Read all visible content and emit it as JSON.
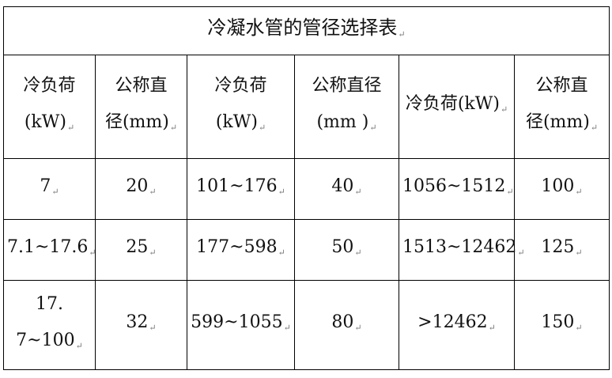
{
  "table": {
    "title": "冷凝水管的管径选择表",
    "headers": [
      {
        "line1": "冷负荷",
        "line2": "(kW)"
      },
      {
        "line1": "公称直",
        "line2": "径(mm)"
      },
      {
        "line1": "冷负荷",
        "line2": "(kW)"
      },
      {
        "line1": "公称直径",
        "line2": "(mm )"
      },
      {
        "line1": "冷负荷(kW)",
        "line2": ""
      },
      {
        "line1": "公称直",
        "line2": "径(mm)"
      }
    ],
    "rows": [
      {
        "c1": "7",
        "c1b": "",
        "c2": "20",
        "c3": "101~176",
        "c4": "40",
        "c5": "1056~1512",
        "c6": "100"
      },
      {
        "c1": "7.1~17.6",
        "c1b": "",
        "c2": "25",
        "c3": "177~598",
        "c4": "50",
        "c5": "1513~12462",
        "c6": "125"
      },
      {
        "c1": "17.",
        "c1b": "7~100",
        "c2": "32",
        "c3": "599~1055",
        "c4": "80",
        "c5": ">12462",
        "c6": "150"
      }
    ],
    "paragraph_mark": "↵"
  }
}
